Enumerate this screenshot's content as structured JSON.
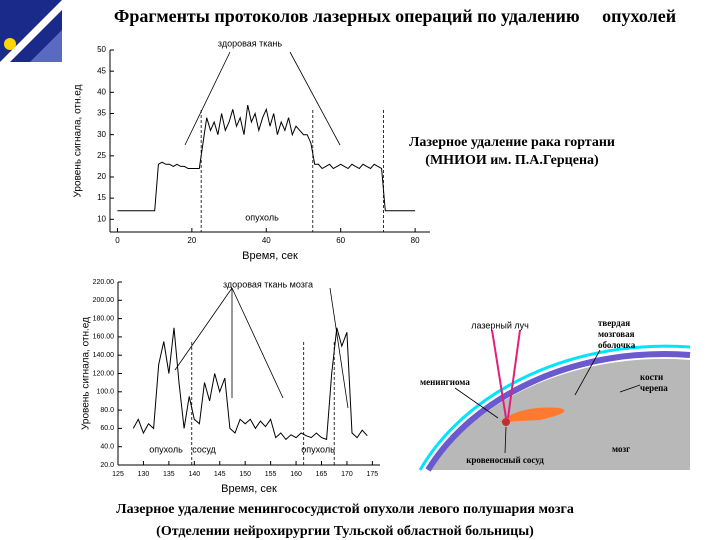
{
  "title": "Фрагменты протоколов лазерных операций по удалению     опухолей",
  "caption_top": [
    "Лазерное удаление  рака гортани",
    "(МНИОИ им. П.А.Герцена)"
  ],
  "caption_bottom": [
    "Лазерное  удаление менингососудистой опухоли левого полушария мозга",
    "(Отделении нейрохирургии Тульской областной больницы)"
  ],
  "diagram": {
    "labels": [
      "лазерный луч",
      "твердая",
      "мозговая",
      "оболочка",
      "кости",
      "черепа",
      "менингиома",
      "мозг",
      "кровеносный сосуд"
    ]
  },
  "chart_data": [
    {
      "type": "line",
      "xlabel": "Время, сек",
      "ylabel": "Уровень сигнала, отн.ед",
      "annotations": [
        "здоровая ткань",
        "опухоль"
      ],
      "xlim": [
        -2,
        84
      ],
      "xticks": [
        0,
        20,
        40,
        60,
        80
      ],
      "ylim": [
        7,
        50
      ],
      "yticks": [
        10,
        15,
        20,
        25,
        30,
        35,
        40,
        45,
        50
      ],
      "color": "#000000",
      "x": [
        0,
        1,
        2,
        3,
        4,
        5,
        6,
        7,
        8,
        9,
        10,
        11,
        12,
        13,
        14,
        15,
        16,
        17,
        18,
        19,
        20,
        21,
        22,
        23,
        24,
        25,
        26,
        27,
        28,
        29,
        30,
        31,
        32,
        33,
        34,
        35,
        36,
        37,
        38,
        39,
        40,
        41,
        42,
        43,
        44,
        45,
        46,
        47,
        48,
        49,
        50,
        51,
        52,
        53,
        54,
        55,
        56,
        57,
        58,
        59,
        60,
        61,
        62,
        63,
        64,
        65,
        66,
        67,
        68,
        69,
        70,
        71,
        72,
        73,
        74,
        75,
        76,
        77,
        78,
        79,
        80
      ],
      "values": [
        12,
        12,
        12,
        12,
        12,
        12,
        12,
        12,
        12,
        12,
        12,
        23,
        23.5,
        23,
        23,
        22.5,
        23,
        22.5,
        22.5,
        22,
        22,
        22,
        22,
        28,
        34,
        31,
        33,
        30,
        35,
        31,
        33,
        36,
        32,
        34,
        30,
        37,
        33,
        35,
        31,
        34,
        36,
        32,
        35,
        30,
        33,
        31,
        34,
        30,
        32,
        31,
        30,
        30,
        28,
        23,
        23,
        22,
        22.5,
        23,
        22,
        22.5,
        23,
        22.5,
        22,
        23,
        22.5,
        22,
        23,
        22.5,
        22,
        23,
        22.5,
        22,
        12,
        12,
        12,
        12,
        12,
        12,
        12,
        12,
        12
      ]
    },
    {
      "type": "line",
      "xlabel": "Время, сек",
      "ylabel": "Уровень сигнала, отн.ед",
      "annotations": [
        "здоровая ткань мозга",
        "опухоль",
        "сосуд",
        "опухоль"
      ],
      "xlim": [
        125,
        176.5
      ],
      "xticks": [
        125,
        130,
        135,
        140,
        145,
        150,
        155,
        160,
        165,
        170,
        175
      ],
      "ylim": [
        20,
        220
      ],
      "yticks": [
        {
          "value": 20,
          "label": "20.0"
        },
        {
          "value": 40,
          "label": "40.0"
        },
        {
          "value": 60,
          "label": "60.0"
        },
        {
          "value": 80,
          "label": "80.0"
        },
        {
          "value": 100,
          "label": "100.0"
        },
        {
          "value": 120,
          "label": "120.00"
        },
        {
          "value": 140,
          "label": "140.00"
        },
        {
          "value": 160,
          "label": "160.00"
        },
        {
          "value": 180,
          "label": "180.00"
        },
        {
          "value": 200,
          "label": "200.00"
        },
        {
          "value": 220,
          "label": "220.00"
        }
      ],
      "color": "#000000",
      "x": [
        128,
        129,
        130,
        131,
        132,
        133,
        134,
        135,
        136,
        137,
        138,
        139,
        140,
        141,
        142,
        143,
        144,
        145,
        146,
        147,
        148,
        149,
        150,
        151,
        152,
        153,
        154,
        155,
        156,
        157,
        158,
        159,
        160,
        161,
        162,
        163,
        164,
        165,
        166,
        167,
        168,
        169,
        170,
        171,
        172,
        173,
        174
      ],
      "values": [
        60,
        70,
        55,
        65,
        60,
        130,
        155,
        120,
        170,
        110,
        60,
        95,
        70,
        65,
        110,
        90,
        120,
        100,
        115,
        60,
        55,
        70,
        65,
        70,
        60,
        68,
        62,
        70,
        50,
        55,
        48,
        53,
        50,
        55,
        52,
        50,
        55,
        50,
        48,
        120,
        170,
        150,
        165,
        55,
        50,
        58,
        52
      ]
    }
  ]
}
